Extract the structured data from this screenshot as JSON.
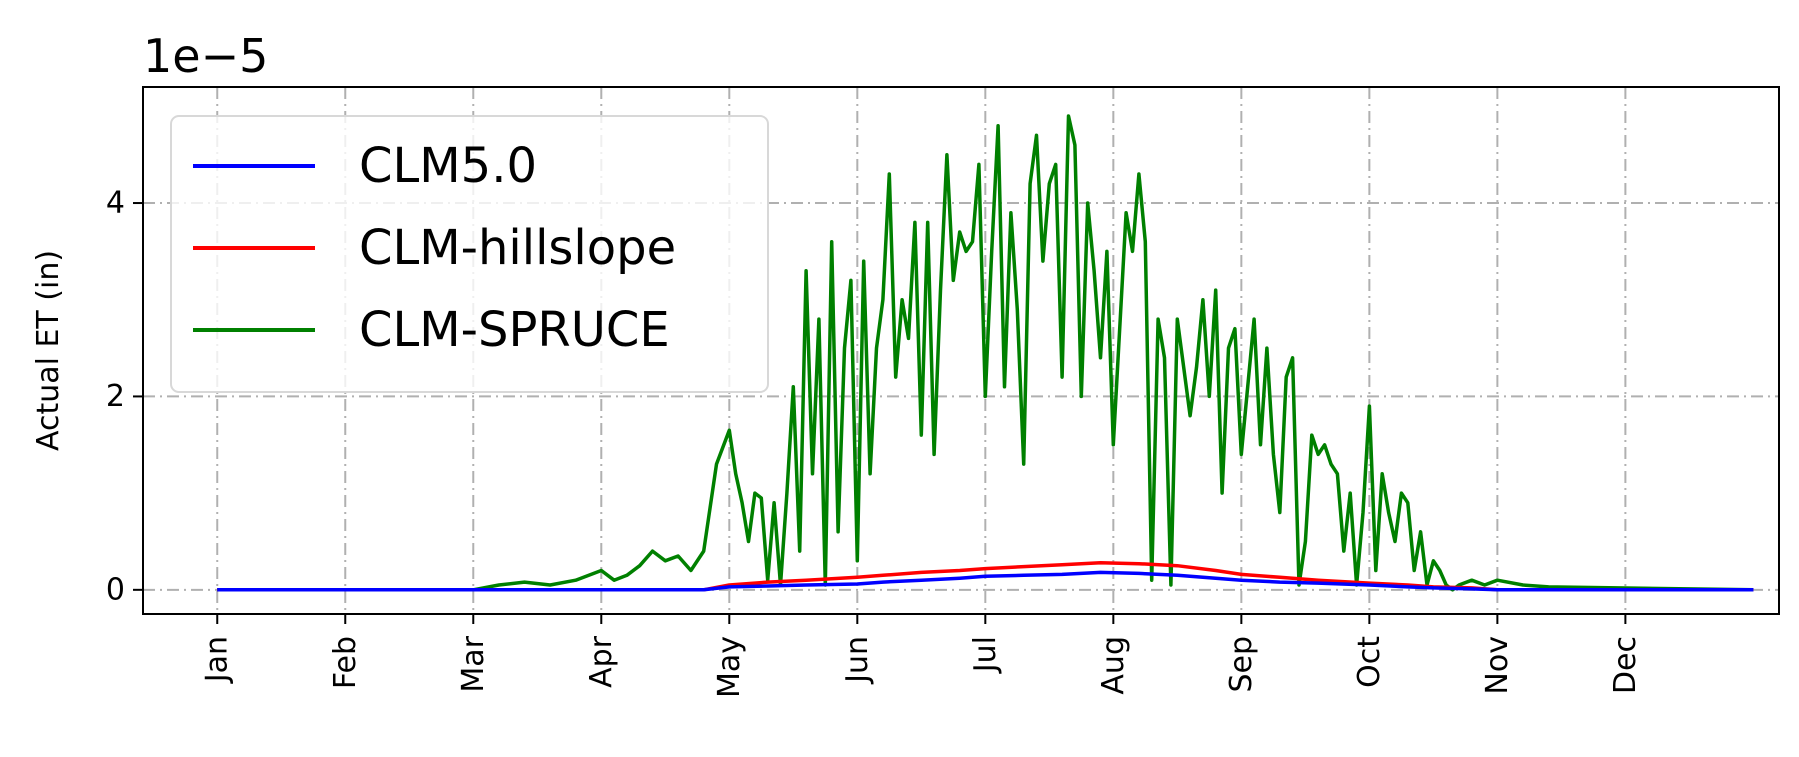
{
  "chart_data": {
    "type": "line",
    "title": "",
    "offset_label": "1e−5",
    "xlabel": "",
    "ylabel": "Actual ET (in)",
    "xlim": [
      -0.58,
      12.2
    ],
    "ylim": [
      -0.25,
      5.2
    ],
    "yticks": [
      0,
      2,
      4
    ],
    "ytick_labels": [
      "0",
      "2",
      "4"
    ],
    "xticks": [
      0,
      1,
      2,
      3,
      4,
      5,
      6,
      7,
      8,
      9,
      10,
      11
    ],
    "xtick_labels": [
      "Jan",
      "Feb",
      "Mar",
      "Apr",
      "May",
      "Jun",
      "Jul",
      "Aug",
      "Sep",
      "Oct",
      "Nov",
      "Dec"
    ],
    "grid": true,
    "legend_position": "top-left",
    "series": [
      {
        "name": "CLM5.0",
        "color": "#0000ff",
        "x": [
          0,
          3.8,
          4.0,
          4.3,
          4.6,
          5.0,
          5.2,
          5.5,
          5.8,
          6.0,
          6.3,
          6.6,
          6.9,
          7.2,
          7.5,
          7.8,
          8.0,
          8.3,
          8.6,
          9.0,
          9.3,
          9.5,
          9.8,
          10.0,
          12.0
        ],
        "y": [
          0,
          0,
          0.03,
          0.04,
          0.05,
          0.06,
          0.08,
          0.1,
          0.12,
          0.14,
          0.15,
          0.16,
          0.18,
          0.17,
          0.15,
          0.12,
          0.1,
          0.08,
          0.07,
          0.05,
          0.03,
          0.02,
          0.01,
          0,
          0
        ]
      },
      {
        "name": "CLM-hillslope",
        "color": "#ff0000",
        "x": [
          0,
          3.8,
          4.0,
          4.3,
          4.6,
          5.0,
          5.2,
          5.5,
          5.8,
          6.0,
          6.3,
          6.6,
          6.9,
          7.2,
          7.5,
          7.8,
          8.0,
          8.3,
          8.6,
          9.0,
          9.3,
          9.5,
          9.8,
          10.0,
          12.0
        ],
        "y": [
          0,
          0,
          0.05,
          0.08,
          0.1,
          0.13,
          0.15,
          0.18,
          0.2,
          0.22,
          0.24,
          0.26,
          0.28,
          0.27,
          0.25,
          0.2,
          0.16,
          0.13,
          0.1,
          0.07,
          0.05,
          0.03,
          0.02,
          0,
          0
        ]
      },
      {
        "name": "CLM-SPRUCE",
        "color": "#008000",
        "x": [
          0,
          2.0,
          2.2,
          2.4,
          2.6,
          2.8,
          3.0,
          3.1,
          3.2,
          3.3,
          3.4,
          3.5,
          3.6,
          3.7,
          3.8,
          3.9,
          4.0,
          4.05,
          4.1,
          4.15,
          4.2,
          4.25,
          4.3,
          4.35,
          4.4,
          4.45,
          4.5,
          4.55,
          4.6,
          4.65,
          4.7,
          4.75,
          4.8,
          4.85,
          4.9,
          4.95,
          5.0,
          5.05,
          5.1,
          5.15,
          5.2,
          5.25,
          5.3,
          5.35,
          5.4,
          5.45,
          5.5,
          5.55,
          5.6,
          5.65,
          5.7,
          5.75,
          5.8,
          5.85,
          5.9,
          5.95,
          6.0,
          6.05,
          6.1,
          6.15,
          6.2,
          6.25,
          6.3,
          6.35,
          6.4,
          6.45,
          6.5,
          6.55,
          6.6,
          6.65,
          6.7,
          6.75,
          6.8,
          6.85,
          6.9,
          6.95,
          7.0,
          7.05,
          7.1,
          7.15,
          7.2,
          7.25,
          7.3,
          7.35,
          7.4,
          7.45,
          7.5,
          7.55,
          7.6,
          7.65,
          7.7,
          7.75,
          7.8,
          7.85,
          7.9,
          7.95,
          8.0,
          8.05,
          8.1,
          8.15,
          8.2,
          8.25,
          8.3,
          8.35,
          8.4,
          8.45,
          8.5,
          8.55,
          8.6,
          8.65,
          8.7,
          8.75,
          8.8,
          8.85,
          8.9,
          8.95,
          9.0,
          9.05,
          9.1,
          9.15,
          9.2,
          9.25,
          9.3,
          9.35,
          9.4,
          9.45,
          9.5,
          9.55,
          9.6,
          9.65,
          9.7,
          9.8,
          9.9,
          10.0,
          10.2,
          10.4,
          12.0
        ],
        "y": [
          0,
          0,
          0.05,
          0.08,
          0.05,
          0.1,
          0.2,
          0.1,
          0.15,
          0.25,
          0.4,
          0.3,
          0.35,
          0.2,
          0.4,
          1.3,
          1.65,
          1.2,
          0.9,
          0.5,
          1.0,
          0.95,
          0.1,
          0.9,
          0.05,
          1.0,
          2.1,
          0.4,
          3.3,
          1.2,
          2.8,
          0.05,
          3.6,
          0.6,
          2.5,
          3.2,
          0.3,
          3.4,
          1.2,
          2.5,
          3.0,
          4.3,
          2.2,
          3.0,
          2.6,
          3.8,
          1.6,
          3.8,
          1.4,
          3.1,
          4.5,
          3.2,
          3.7,
          3.5,
          3.6,
          4.4,
          2.0,
          3.5,
          4.8,
          2.1,
          3.9,
          2.9,
          1.3,
          4.2,
          4.7,
          3.4,
          4.2,
          4.4,
          2.2,
          4.9,
          4.6,
          2.0,
          4.0,
          3.3,
          2.4,
          3.5,
          1.5,
          2.7,
          3.9,
          3.5,
          4.3,
          3.6,
          0.1,
          2.8,
          2.4,
          0.05,
          2.8,
          2.3,
          1.8,
          2.3,
          3.0,
          2.0,
          3.1,
          1.0,
          2.5,
          2.7,
          1.4,
          2.1,
          2.8,
          1.5,
          2.5,
          1.4,
          0.8,
          2.2,
          2.4,
          0.05,
          0.5,
          1.6,
          1.4,
          1.5,
          1.3,
          1.2,
          0.4,
          1.0,
          0.05,
          0.8,
          1.9,
          0.2,
          1.2,
          0.8,
          0.5,
          1.0,
          0.9,
          0.2,
          0.6,
          0.05,
          0.3,
          0.2,
          0.05,
          0,
          0.05,
          0.1,
          0.05,
          0.1,
          0.05,
          0.03,
          0
        ]
      }
    ]
  }
}
